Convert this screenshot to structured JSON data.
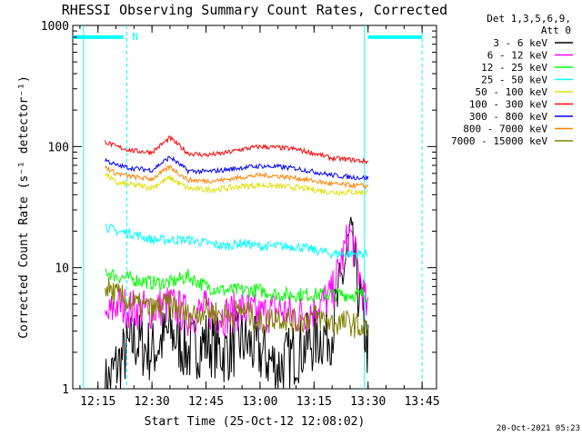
{
  "chart_data": {
    "type": "line",
    "title": "RHESSI Observing Summary Count Rates, Corrected",
    "xlabel": "Start Time (25-Oct-12 12:08:02)",
    "ylabel": "Corrected Count Rate (s⁻¹ detector⁻¹)",
    "yscale": "log",
    "xlim": [
      "12:08",
      "13:49"
    ],
    "ylim": [
      1,
      1000
    ],
    "x_ticks": [
      "12:15",
      "12:30",
      "12:45",
      "13:00",
      "13:15",
      "13:30",
      "13:45"
    ],
    "y_ticks": [
      "1",
      "10",
      "100",
      "1000"
    ],
    "legend_header": [
      "Det 1,3,5,6,9,",
      "Att 0"
    ],
    "legend_position": "right",
    "footer": "20-Oct-2021 05:23",
    "annotations": [
      {
        "text": "N",
        "x": "12:23"
      }
    ],
    "flags": {
      "color": "#00ffff",
      "level": 800,
      "segments": [
        [
          "12:08",
          "12:22"
        ],
        [
          "13:30",
          "13:45"
        ]
      ]
    },
    "markers": {
      "color": "#00ffff",
      "solid_x": [
        "12:11",
        "13:29"
      ],
      "dashed_x": [
        "12:23",
        "13:45"
      ]
    },
    "series": [
      {
        "name": "3 - 6 keV",
        "color": "#000000",
        "x": [
          "12:17",
          "12:20",
          "12:25",
          "12:30",
          "12:35",
          "12:40",
          "12:45",
          "12:50",
          "12:55",
          "13:00",
          "13:05",
          "13:10",
          "13:15",
          "13:20",
          "13:25",
          "13:30"
        ],
        "y": [
          1,
          1.5,
          2.5,
          2,
          3,
          2,
          2.5,
          2,
          2.5,
          2,
          1.5,
          2,
          2.5,
          3,
          18,
          2
        ]
      },
      {
        "name": "6 - 12 keV",
        "color": "#ff00ff",
        "x": [
          "12:17",
          "12:20",
          "12:25",
          "12:30",
          "12:35",
          "12:40",
          "12:45",
          "12:50",
          "12:55",
          "13:00",
          "13:05",
          "13:10",
          "13:15",
          "13:20",
          "13:25",
          "13:30"
        ],
        "y": [
          3.5,
          5,
          4.5,
          4.5,
          5,
          4,
          4.5,
          4,
          4.5,
          4,
          4.5,
          4,
          4.5,
          6,
          20,
          4
        ]
      },
      {
        "name": "12 - 25 keV",
        "color": "#00ff00",
        "x": [
          "12:17",
          "12:20",
          "12:25",
          "12:30",
          "12:35",
          "12:40",
          "12:45",
          "12:50",
          "12:55",
          "13:00",
          "13:05",
          "13:10",
          "13:15",
          "13:20",
          "13:25",
          "13:30"
        ],
        "y": [
          9.5,
          8.5,
          8,
          7.5,
          7.5,
          8.5,
          7,
          6.5,
          6.5,
          6.5,
          6,
          6,
          6,
          6,
          6,
          6
        ]
      },
      {
        "name": "25 - 50 keV",
        "color": "#00ffff",
        "x": [
          "12:17",
          "12:20",
          "12:25",
          "12:30",
          "12:35",
          "12:40",
          "12:45",
          "12:50",
          "12:55",
          "13:00",
          "13:05",
          "13:10",
          "13:15",
          "13:20",
          "13:25",
          "13:30"
        ],
        "y": [
          22,
          20,
          19,
          17,
          17,
          17,
          16,
          15,
          16,
          15,
          15,
          15,
          14,
          13,
          13,
          13
        ]
      },
      {
        "name": "50 - 100 keV",
        "color": "#e0e000",
        "x": [
          "12:17",
          "12:20",
          "12:25",
          "12:30",
          "12:35",
          "12:40",
          "12:45",
          "12:50",
          "12:55",
          "13:00",
          "13:05",
          "13:10",
          "13:15",
          "13:20",
          "13:25",
          "13:30"
        ],
        "y": [
          60,
          50,
          48,
          46,
          55,
          45,
          44,
          45,
          47,
          48,
          47,
          46,
          44,
          42,
          42,
          42
        ]
      },
      {
        "name": "100 - 300 keV",
        "color": "#ff0000",
        "x": [
          "12:17",
          "12:20",
          "12:25",
          "12:30",
          "12:35",
          "12:40",
          "12:45",
          "12:50",
          "12:55",
          "13:00",
          "13:05",
          "13:10",
          "13:15",
          "13:20",
          "13:25",
          "13:30"
        ],
        "y": [
          110,
          100,
          92,
          90,
          118,
          88,
          85,
          88,
          95,
          100,
          98,
          95,
          88,
          80,
          78,
          75
        ]
      },
      {
        "name": "300 - 800 keV",
        "color": "#0000ff",
        "x": [
          "12:17",
          "12:20",
          "12:25",
          "12:30",
          "12:35",
          "12:40",
          "12:45",
          "12:50",
          "12:55",
          "13:00",
          "13:05",
          "13:10",
          "13:15",
          "13:20",
          "13:25",
          "13:30"
        ],
        "y": [
          78,
          70,
          66,
          64,
          82,
          63,
          62,
          64,
          67,
          69,
          68,
          66,
          62,
          58,
          56,
          55
        ]
      },
      {
        "name": "800 - 7000 keV",
        "color": "#ff8000",
        "x": [
          "12:17",
          "12:20",
          "12:25",
          "12:30",
          "12:35",
          "12:40",
          "12:45",
          "12:50",
          "12:55",
          "13:00",
          "13:05",
          "13:10",
          "13:15",
          "13:20",
          "13:25",
          "13:30"
        ],
        "y": [
          68,
          60,
          56,
          54,
          68,
          53,
          52,
          53,
          56,
          58,
          57,
          55,
          52,
          49,
          48,
          47
        ]
      },
      {
        "name": "7000 - 15000 keV",
        "color": "#808000",
        "x": [
          "12:17",
          "12:20",
          "12:25",
          "12:30",
          "12:35",
          "12:40",
          "12:45",
          "12:50",
          "12:55",
          "13:00",
          "13:05",
          "13:10",
          "13:15",
          "13:20",
          "13:25",
          "13:30"
        ],
        "y": [
          7,
          6,
          5,
          4.5,
          5,
          4,
          4.5,
          4,
          4.5,
          3.5,
          4,
          3.5,
          4,
          3.5,
          3.5,
          3
        ]
      }
    ]
  }
}
